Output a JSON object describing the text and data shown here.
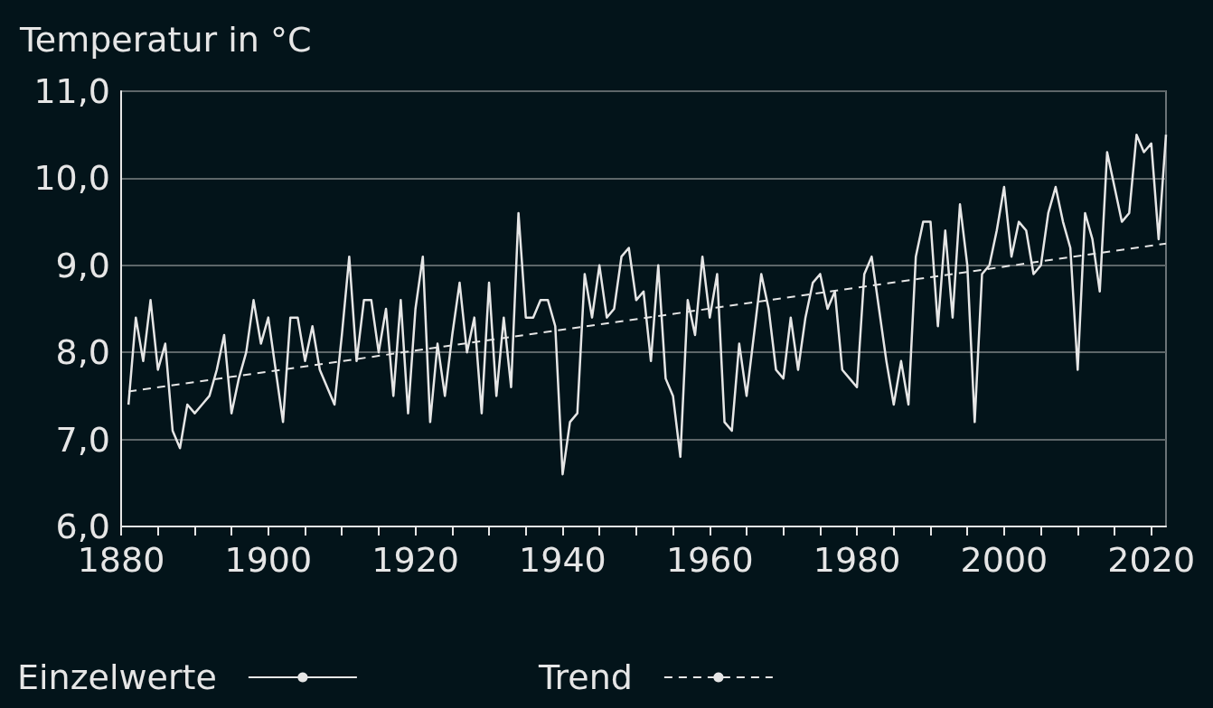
{
  "chart_data": {
    "type": "line",
    "ylabel": "Temperatur in °C",
    "xlim": [
      1880,
      2022
    ],
    "xticks": [
      1880,
      {
        "value": 1885,
        "label": null
      },
      {
        "value": 1890,
        "label": null
      },
      {
        "value": 1895,
        "label": null
      },
      1900,
      {
        "value": 1905,
        "label": null
      },
      {
        "value": 1910,
        "label": null
      },
      {
        "value": 1915,
        "label": null
      },
      1920,
      {
        "value": 1925,
        "label": null
      },
      {
        "value": 1930,
        "label": null
      },
      {
        "value": 1935,
        "label": null
      },
      1940,
      {
        "value": 1945,
        "label": null
      },
      {
        "value": 1950,
        "label": null
      },
      {
        "value": 1955,
        "label": null
      },
      1960,
      {
        "value": 1965,
        "label": null
      },
      {
        "value": 1970,
        "label": null
      },
      {
        "value": 1975,
        "label": null
      },
      1980,
      {
        "value": 1985,
        "label": null
      },
      {
        "value": 1990,
        "label": null
      },
      {
        "value": 1995,
        "label": null
      },
      2000,
      {
        "value": 2005,
        "label": null
      },
      {
        "value": 2010,
        "label": null
      },
      {
        "value": 2015,
        "label": null
      },
      2020
    ],
    "ylim": [
      6,
      11
    ],
    "yticks": [
      {
        "value": 6,
        "label": "6,0"
      },
      {
        "value": 7,
        "label": "7,0"
      },
      {
        "value": 8,
        "label": "8,0"
      },
      {
        "value": 9,
        "label": "9,0"
      },
      {
        "value": 10,
        "label": "10,0"
      },
      {
        "value": 11,
        "label": "11,0"
      }
    ],
    "grid": "y",
    "legend": "bottom left",
    "marker": "none",
    "series": [
      {
        "name": "Einzelwerte",
        "color": "#e6e6e6",
        "line_style": "solid",
        "x": [
          1881,
          1882,
          1883,
          1884,
          1885,
          1886,
          1887,
          1888,
          1889,
          1890,
          1891,
          1892,
          1893,
          1894,
          1895,
          1896,
          1897,
          1898,
          1899,
          1900,
          1901,
          1902,
          1903,
          1904,
          1905,
          1906,
          1907,
          1908,
          1909,
          1910,
          1911,
          1912,
          1913,
          1914,
          1915,
          1916,
          1917,
          1918,
          1919,
          1920,
          1921,
          1922,
          1923,
          1924,
          1925,
          1926,
          1927,
          1928,
          1929,
          1930,
          1931,
          1932,
          1933,
          1934,
          1935,
          1936,
          1937,
          1938,
          1939,
          1940,
          1941,
          1942,
          1943,
          1944,
          1945,
          1946,
          1947,
          1948,
          1949,
          1950,
          1951,
          1952,
          1953,
          1954,
          1955,
          1956,
          1957,
          1958,
          1959,
          1960,
          1961,
          1962,
          1963,
          1964,
          1965,
          1966,
          1967,
          1968,
          1969,
          1970,
          1971,
          1972,
          1973,
          1974,
          1975,
          1976,
          1977,
          1978,
          1979,
          1980,
          1981,
          1982,
          1983,
          1984,
          1985,
          1986,
          1987,
          1988,
          1989,
          1990,
          1991,
          1992,
          1993,
          1994,
          1995,
          1996,
          1997,
          1998,
          1999,
          2000,
          2001,
          2002,
          2003,
          2004,
          2005,
          2006,
          2007,
          2008,
          2009,
          2010,
          2011,
          2012,
          2013,
          2014,
          2015,
          2016,
          2017,
          2018,
          2019,
          2020,
          2021,
          2022
        ],
        "values": [
          7.4,
          8.4,
          7.9,
          8.6,
          7.8,
          8.1,
          7.1,
          6.9,
          7.4,
          7.3,
          7.4,
          7.5,
          7.8,
          8.2,
          7.3,
          7.7,
          8.0,
          8.6,
          8.1,
          8.4,
          7.8,
          7.2,
          8.4,
          8.4,
          7.9,
          8.3,
          7.8,
          7.6,
          7.4,
          8.2,
          9.1,
          7.9,
          8.6,
          8.6,
          8.0,
          8.5,
          7.5,
          8.6,
          7.3,
          8.5,
          9.1,
          7.2,
          8.1,
          7.5,
          8.2,
          8.8,
          8.0,
          8.4,
          7.3,
          8.8,
          7.5,
          8.4,
          7.6,
          9.6,
          8.4,
          8.4,
          8.6,
          8.6,
          8.3,
          6.6,
          7.2,
          7.3,
          8.9,
          8.4,
          9.0,
          8.4,
          8.5,
          9.1,
          9.2,
          8.6,
          8.7,
          7.9,
          9.0,
          7.7,
          7.5,
          6.8,
          8.6,
          8.2,
          9.1,
          8.4,
          8.9,
          7.2,
          7.1,
          8.1,
          7.5,
          8.2,
          8.9,
          8.5,
          7.8,
          7.7,
          8.4,
          7.8,
          8.4,
          8.8,
          8.9,
          8.5,
          8.7,
          7.8,
          7.7,
          7.6,
          8.9,
          9.1,
          8.5,
          7.9,
          7.4,
          7.9,
          7.4,
          9.1,
          9.5,
          9.5,
          8.3,
          9.4,
          8.4,
          9.7,
          9.0,
          7.2,
          8.9,
          9.0,
          9.4,
          9.9,
          9.1,
          9.5,
          9.4,
          8.9,
          9.0,
          9.6,
          9.9,
          9.5,
          9.2,
          7.8,
          9.6,
          9.3,
          8.7,
          10.3,
          9.9,
          9.5,
          9.6,
          10.5,
          10.3,
          10.4,
          9.3,
          10.5
        ]
      },
      {
        "name": "Trend",
        "color": "#e6e6e6",
        "line_style": "dashed",
        "x": [
          1881,
          2022
        ],
        "values": [
          7.55,
          9.25
        ]
      }
    ]
  }
}
